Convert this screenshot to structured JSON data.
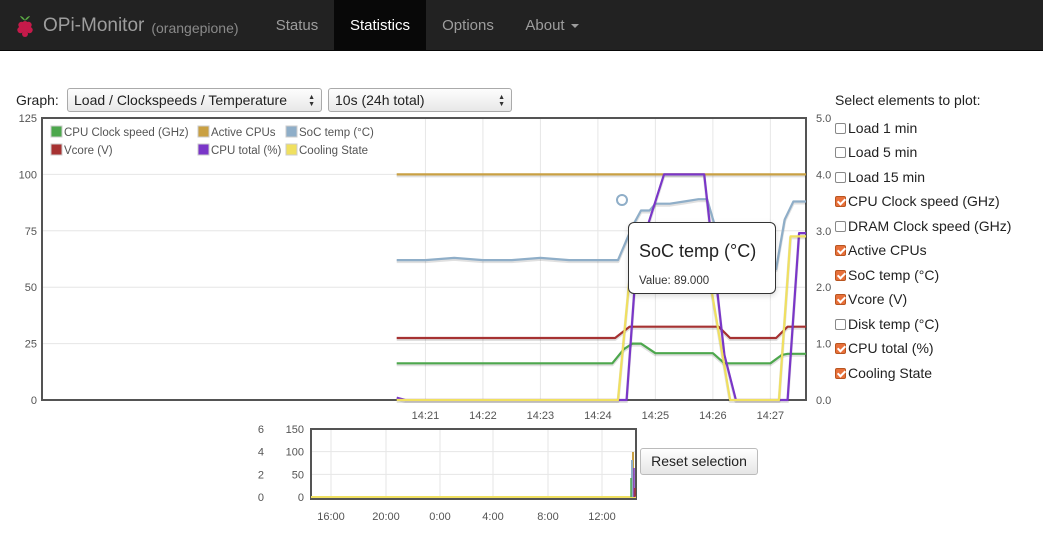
{
  "navbar": {
    "brand": "OPi-Monitor",
    "host": "(orangepione)",
    "items": [
      {
        "label": "Status",
        "active": false,
        "dropdown": false
      },
      {
        "label": "Statistics",
        "active": true,
        "dropdown": false
      },
      {
        "label": "Options",
        "active": false,
        "dropdown": false
      },
      {
        "label": "About",
        "active": false,
        "dropdown": true
      }
    ]
  },
  "controls": {
    "graph_label": "Graph:",
    "graph_select": "Load / Clockspeeds / Temperature",
    "interval_select": "10s (24h total)"
  },
  "tooltip": {
    "title": "SoC temp (°C)",
    "value": "Value: 89.000"
  },
  "reset_label": "Reset selection",
  "panel": {
    "title": "Select elements to plot:",
    "options": [
      {
        "label": "Load 1 min",
        "checked": false
      },
      {
        "label": "Load 5 min",
        "checked": false
      },
      {
        "label": "Load 15 min",
        "checked": false
      },
      {
        "label": "CPU Clock speed (GHz)",
        "checked": true
      },
      {
        "label": "DRAM Clock speed (GHz)",
        "checked": false
      },
      {
        "label": "Active CPUs",
        "checked": true
      },
      {
        "label": "SoC temp (°C)",
        "checked": true
      },
      {
        "label": "Vcore (V)",
        "checked": true
      },
      {
        "label": "Disk temp (°C)",
        "checked": false
      },
      {
        "label": "CPU total (%)",
        "checked": true
      },
      {
        "label": "Cooling State",
        "checked": true
      }
    ]
  },
  "chart_data": [
    {
      "type": "line",
      "x_ticks": [
        "14:21",
        "14:22",
        "14:23",
        "14:24",
        "14:25",
        "14:26",
        "14:27"
      ],
      "xlim": [
        14.33,
        27.62
      ],
      "y_left_ticks": [
        "0",
        "25",
        "50",
        "75",
        "100",
        "125"
      ],
      "ylim_left": [
        0,
        125
      ],
      "y_right_ticks": [
        "0.0",
        "1.0",
        "2.0",
        "3.0",
        "4.0",
        "5.0"
      ],
      "ylim_right": [
        0,
        5
      ],
      "grid": true,
      "legend": "inside-top-left",
      "series": [
        {
          "name": "CPU Clock speed (GHz)",
          "color": "#4da74d",
          "axis": "right",
          "x": [
            20.5,
            24.25,
            24.45,
            24.6,
            24.75,
            25.0,
            25.3,
            25.6,
            26.0,
            26.2,
            26.5,
            26.8,
            27.0,
            27.2,
            27.3,
            27.62
          ],
          "y": [
            0.65,
            0.65,
            0.9,
            1.0,
            1.0,
            0.83,
            0.83,
            0.83,
            0.83,
            0.65,
            0.65,
            0.65,
            0.65,
            0.8,
            0.82,
            0.82
          ]
        },
        {
          "name": "Active CPUs",
          "color": "#c9a043",
          "axis": "right",
          "x": [
            20.5,
            27.62
          ],
          "y": [
            4.0,
            4.0
          ]
        },
        {
          "name": "SoC temp (°C)",
          "color": "#8faec8",
          "axis": "left",
          "x": [
            20.5,
            21.0,
            21.5,
            22.0,
            22.5,
            23.0,
            23.5,
            24.0,
            24.35,
            24.6,
            24.75,
            24.9,
            25.0,
            25.25,
            25.5,
            25.75,
            25.9,
            26.05,
            26.2,
            26.5,
            26.8,
            27.1,
            27.25,
            27.4,
            27.62
          ],
          "y": [
            62,
            62,
            63,
            62,
            62,
            63,
            62,
            62,
            62,
            77,
            84,
            84,
            87,
            87,
            88,
            89,
            89,
            76,
            60,
            58,
            58,
            58,
            80,
            88,
            88
          ]
        },
        {
          "name": "Vcore (V)",
          "color": "#a63232",
          "axis": "right",
          "x": [
            20.5,
            24.3,
            24.55,
            26.1,
            26.3,
            27.1,
            27.3,
            27.62
          ],
          "y": [
            1.1,
            1.1,
            1.3,
            1.3,
            1.1,
            1.1,
            1.3,
            1.3
          ]
        },
        {
          "name": "CPU total (%)",
          "color": "#7a36c8",
          "axis": "left",
          "x": [
            20.5,
            20.65,
            24.5,
            24.7,
            24.8,
            25.15,
            25.85,
            26.2,
            26.4,
            27.3,
            27.5,
            27.62
          ],
          "y": [
            1,
            0,
            0,
            72,
            72,
            100,
            100,
            20,
            0,
            0,
            74,
            74
          ]
        },
        {
          "name": "Cooling State",
          "color": "#f0e060",
          "axis": "right",
          "x": [
            20.5,
            24.35,
            24.6,
            24.7,
            24.9,
            25.15,
            25.8,
            26.0,
            26.3,
            27.15,
            27.35,
            27.62
          ],
          "y": [
            0,
            0,
            2.7,
            2.7,
            3.0,
            3.0,
            3.0,
            1.8,
            0,
            0,
            2.9,
            2.9
          ]
        }
      ]
    },
    {
      "type": "line",
      "x_ticks": [
        "16:00",
        "20:00",
        "0:00",
        "4:00",
        "8:00",
        "12:00"
      ],
      "y_left_ticks": [
        "0",
        "2",
        "4",
        "6"
      ],
      "y_right_ticks": [
        "0",
        "50",
        "100",
        "150"
      ],
      "ylim_left": [
        0,
        6
      ],
      "ylim_right": [
        0,
        150
      ],
      "grid": true
    }
  ]
}
